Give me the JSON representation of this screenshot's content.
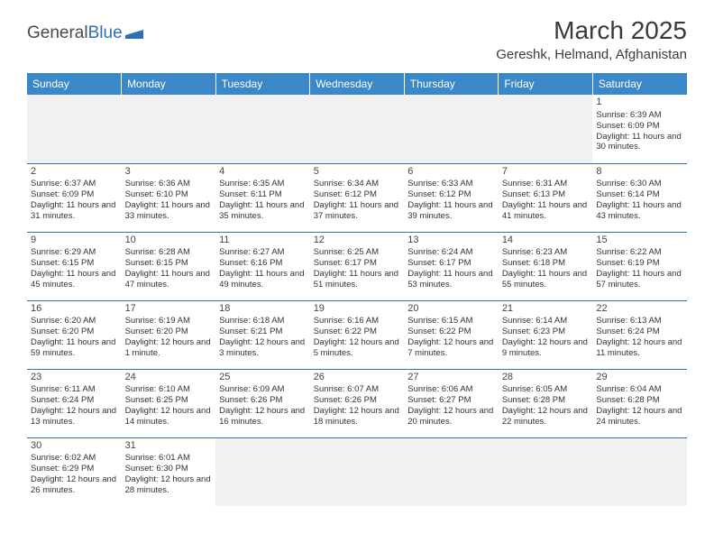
{
  "brand": {
    "name1": "General",
    "name2": "Blue"
  },
  "title": "March 2025",
  "location": "Gereshk, Helmand, Afghanistan",
  "colors": {
    "header_bg": "#3b88c9",
    "header_text": "#ffffff",
    "border": "#2f6fb3",
    "empty_bg": "#f1f1f1",
    "text": "#333333"
  },
  "weekdays": [
    "Sunday",
    "Monday",
    "Tuesday",
    "Wednesday",
    "Thursday",
    "Friday",
    "Saturday"
  ],
  "weeks": [
    [
      null,
      null,
      null,
      null,
      null,
      null,
      {
        "day": "1",
        "sunrise": "Sunrise: 6:39 AM",
        "sunset": "Sunset: 6:09 PM",
        "daylight": "Daylight: 11 hours and 30 minutes."
      }
    ],
    [
      {
        "day": "2",
        "sunrise": "Sunrise: 6:37 AM",
        "sunset": "Sunset: 6:09 PM",
        "daylight": "Daylight: 11 hours and 31 minutes."
      },
      {
        "day": "3",
        "sunrise": "Sunrise: 6:36 AM",
        "sunset": "Sunset: 6:10 PM",
        "daylight": "Daylight: 11 hours and 33 minutes."
      },
      {
        "day": "4",
        "sunrise": "Sunrise: 6:35 AM",
        "sunset": "Sunset: 6:11 PM",
        "daylight": "Daylight: 11 hours and 35 minutes."
      },
      {
        "day": "5",
        "sunrise": "Sunrise: 6:34 AM",
        "sunset": "Sunset: 6:12 PM",
        "daylight": "Daylight: 11 hours and 37 minutes."
      },
      {
        "day": "6",
        "sunrise": "Sunrise: 6:33 AM",
        "sunset": "Sunset: 6:12 PM",
        "daylight": "Daylight: 11 hours and 39 minutes."
      },
      {
        "day": "7",
        "sunrise": "Sunrise: 6:31 AM",
        "sunset": "Sunset: 6:13 PM",
        "daylight": "Daylight: 11 hours and 41 minutes."
      },
      {
        "day": "8",
        "sunrise": "Sunrise: 6:30 AM",
        "sunset": "Sunset: 6:14 PM",
        "daylight": "Daylight: 11 hours and 43 minutes."
      }
    ],
    [
      {
        "day": "9",
        "sunrise": "Sunrise: 6:29 AM",
        "sunset": "Sunset: 6:15 PM",
        "daylight": "Daylight: 11 hours and 45 minutes."
      },
      {
        "day": "10",
        "sunrise": "Sunrise: 6:28 AM",
        "sunset": "Sunset: 6:15 PM",
        "daylight": "Daylight: 11 hours and 47 minutes."
      },
      {
        "day": "11",
        "sunrise": "Sunrise: 6:27 AM",
        "sunset": "Sunset: 6:16 PM",
        "daylight": "Daylight: 11 hours and 49 minutes."
      },
      {
        "day": "12",
        "sunrise": "Sunrise: 6:25 AM",
        "sunset": "Sunset: 6:17 PM",
        "daylight": "Daylight: 11 hours and 51 minutes."
      },
      {
        "day": "13",
        "sunrise": "Sunrise: 6:24 AM",
        "sunset": "Sunset: 6:17 PM",
        "daylight": "Daylight: 11 hours and 53 minutes."
      },
      {
        "day": "14",
        "sunrise": "Sunrise: 6:23 AM",
        "sunset": "Sunset: 6:18 PM",
        "daylight": "Daylight: 11 hours and 55 minutes."
      },
      {
        "day": "15",
        "sunrise": "Sunrise: 6:22 AM",
        "sunset": "Sunset: 6:19 PM",
        "daylight": "Daylight: 11 hours and 57 minutes."
      }
    ],
    [
      {
        "day": "16",
        "sunrise": "Sunrise: 6:20 AM",
        "sunset": "Sunset: 6:20 PM",
        "daylight": "Daylight: 11 hours and 59 minutes."
      },
      {
        "day": "17",
        "sunrise": "Sunrise: 6:19 AM",
        "sunset": "Sunset: 6:20 PM",
        "daylight": "Daylight: 12 hours and 1 minute."
      },
      {
        "day": "18",
        "sunrise": "Sunrise: 6:18 AM",
        "sunset": "Sunset: 6:21 PM",
        "daylight": "Daylight: 12 hours and 3 minutes."
      },
      {
        "day": "19",
        "sunrise": "Sunrise: 6:16 AM",
        "sunset": "Sunset: 6:22 PM",
        "daylight": "Daylight: 12 hours and 5 minutes."
      },
      {
        "day": "20",
        "sunrise": "Sunrise: 6:15 AM",
        "sunset": "Sunset: 6:22 PM",
        "daylight": "Daylight: 12 hours and 7 minutes."
      },
      {
        "day": "21",
        "sunrise": "Sunrise: 6:14 AM",
        "sunset": "Sunset: 6:23 PM",
        "daylight": "Daylight: 12 hours and 9 minutes."
      },
      {
        "day": "22",
        "sunrise": "Sunrise: 6:13 AM",
        "sunset": "Sunset: 6:24 PM",
        "daylight": "Daylight: 12 hours and 11 minutes."
      }
    ],
    [
      {
        "day": "23",
        "sunrise": "Sunrise: 6:11 AM",
        "sunset": "Sunset: 6:24 PM",
        "daylight": "Daylight: 12 hours and 13 minutes."
      },
      {
        "day": "24",
        "sunrise": "Sunrise: 6:10 AM",
        "sunset": "Sunset: 6:25 PM",
        "daylight": "Daylight: 12 hours and 14 minutes."
      },
      {
        "day": "25",
        "sunrise": "Sunrise: 6:09 AM",
        "sunset": "Sunset: 6:26 PM",
        "daylight": "Daylight: 12 hours and 16 minutes."
      },
      {
        "day": "26",
        "sunrise": "Sunrise: 6:07 AM",
        "sunset": "Sunset: 6:26 PM",
        "daylight": "Daylight: 12 hours and 18 minutes."
      },
      {
        "day": "27",
        "sunrise": "Sunrise: 6:06 AM",
        "sunset": "Sunset: 6:27 PM",
        "daylight": "Daylight: 12 hours and 20 minutes."
      },
      {
        "day": "28",
        "sunrise": "Sunrise: 6:05 AM",
        "sunset": "Sunset: 6:28 PM",
        "daylight": "Daylight: 12 hours and 22 minutes."
      },
      {
        "day": "29",
        "sunrise": "Sunrise: 6:04 AM",
        "sunset": "Sunset: 6:28 PM",
        "daylight": "Daylight: 12 hours and 24 minutes."
      }
    ],
    [
      {
        "day": "30",
        "sunrise": "Sunrise: 6:02 AM",
        "sunset": "Sunset: 6:29 PM",
        "daylight": "Daylight: 12 hours and 26 minutes."
      },
      {
        "day": "31",
        "sunrise": "Sunrise: 6:01 AM",
        "sunset": "Sunset: 6:30 PM",
        "daylight": "Daylight: 12 hours and 28 minutes."
      },
      null,
      null,
      null,
      null,
      null
    ]
  ]
}
